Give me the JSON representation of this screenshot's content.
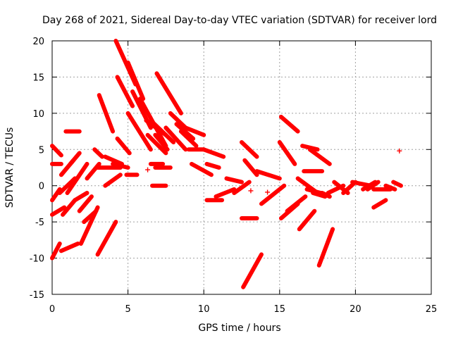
{
  "chart_data": {
    "type": "scatter",
    "title": "Day 268 of 2021, Sidereal Day-to-day VTEC variation (SDTVAR) for receiver lord",
    "xlabel": "GPS time / hours",
    "ylabel": "SDTVAR / TECUs",
    "xlim": [
      0,
      25
    ],
    "ylim": [
      -15,
      20
    ],
    "xticks": [
      0,
      5,
      10,
      15,
      20,
      25
    ],
    "yticks": [
      -15,
      -10,
      -5,
      0,
      5,
      10,
      15,
      20
    ],
    "xtick_labels": [
      "0",
      "5",
      "10",
      "15",
      "20",
      "25"
    ],
    "ytick_labels": [
      "-15",
      "-10",
      "-5",
      "0",
      "5",
      "10",
      "15",
      "20"
    ],
    "grid": true,
    "marker": "+",
    "color": "#ff0000",
    "series": [
      {
        "name": "track",
        "x": [
          0.0,
          0.6
        ],
        "y": [
          5.5,
          4.2
        ]
      },
      {
        "name": "track",
        "x": [
          0.0,
          0.6
        ],
        "y": [
          3.0,
          3.0
        ]
      },
      {
        "name": "track",
        "x": [
          0.0,
          0.5
        ],
        "y": [
          -2.0,
          -0.5
        ]
      },
      {
        "name": "track",
        "x": [
          0.0,
          0.8
        ],
        "y": [
          -4.0,
          -3.0
        ]
      },
      {
        "name": "track",
        "x": [
          0.0,
          0.5
        ],
        "y": [
          -10.0,
          -8.0
        ]
      },
      {
        "name": "track",
        "x": [
          0.6,
          1.7
        ],
        "y": [
          -9.0,
          -8.0
        ]
      },
      {
        "name": "track",
        "x": [
          0.9,
          1.8
        ],
        "y": [
          7.5,
          7.5
        ]
      },
      {
        "name": "track",
        "x": [
          0.5,
          1.5
        ],
        "y": [
          -1.0,
          1.0
        ]
      },
      {
        "name": "track",
        "x": [
          0.6,
          1.4
        ],
        "y": [
          1.5,
          3.5
        ]
      },
      {
        "name": "track",
        "x": [
          0.7,
          1.5
        ],
        "y": [
          -4.0,
          -2.0
        ]
      },
      {
        "name": "track",
        "x": [
          1.2,
          1.8
        ],
        "y": [
          3.0,
          4.5
        ]
      },
      {
        "name": "track",
        "x": [
          1.0,
          2.3
        ],
        "y": [
          -1.0,
          3.0
        ]
      },
      {
        "name": "track",
        "x": [
          1.5,
          2.3
        ],
        "y": [
          -2.0,
          -1.0
        ]
      },
      {
        "name": "track",
        "x": [
          1.8,
          2.6
        ],
        "y": [
          -3.5,
          -1.5
        ]
      },
      {
        "name": "track",
        "x": [
          1.9,
          3.0
        ],
        "y": [
          -8.0,
          -3.0
        ]
      },
      {
        "name": "track",
        "x": [
          2.1,
          2.9
        ],
        "y": [
          -5.0,
          -3.5
        ]
      },
      {
        "name": "track",
        "x": [
          2.3,
          3.1
        ],
        "y": [
          1.0,
          3.0
        ]
      },
      {
        "name": "track",
        "x": [
          2.8,
          3.3
        ],
        "y": [
          5.0,
          4.0
        ]
      },
      {
        "name": "track",
        "x": [
          3.0,
          4.2
        ],
        "y": [
          -9.5,
          -5.0
        ]
      },
      {
        "name": "track",
        "x": [
          3.0,
          4.5
        ],
        "y": [
          2.5,
          2.5
        ]
      },
      {
        "name": "track",
        "x": [
          3.1,
          4.0
        ],
        "y": [
          12.5,
          7.5
        ]
      },
      {
        "name": "track",
        "x": [
          3.5,
          4.6
        ],
        "y": [
          4.0,
          3.0
        ]
      },
      {
        "name": "track",
        "x": [
          3.5,
          4.5
        ],
        "y": [
          0.0,
          1.5
        ]
      },
      {
        "name": "track",
        "x": [
          4.0,
          5.0
        ],
        "y": [
          3.0,
          2.5
        ]
      },
      {
        "name": "track",
        "x": [
          4.2,
          5.5
        ],
        "y": [
          20.0,
          14.0
        ]
      },
      {
        "name": "track",
        "x": [
          4.3,
          5.3
        ],
        "y": [
          15.0,
          11.0
        ]
      },
      {
        "name": "track",
        "x": [
          4.3,
          5.1
        ],
        "y": [
          6.5,
          4.5
        ]
      },
      {
        "name": "track",
        "x": [
          4.9,
          5.6
        ],
        "y": [
          1.5,
          1.5
        ]
      },
      {
        "name": "track",
        "x": [
          5.0,
          6.5
        ],
        "y": [
          10.0,
          5.0
        ]
      },
      {
        "name": "track",
        "x": [
          5.0,
          6.0
        ],
        "y": [
          17.0,
          12.0
        ]
      },
      {
        "name": "track",
        "x": [
          5.3,
          6.5
        ],
        "y": [
          13.0,
          8.0
        ]
      },
      {
        "name": "track",
        "x": [
          5.8,
          7.5
        ],
        "y": [
          12.0,
          5.5
        ]
      },
      {
        "name": "track",
        "x": [
          6.2,
          7.5
        ],
        "y": [
          9.0,
          7.0
        ]
      },
      {
        "name": "track",
        "x": [
          6.3,
          7.5
        ],
        "y": [
          7.0,
          4.5
        ]
      },
      {
        "name": "track",
        "x": [
          6.5,
          8.0
        ],
        "y": [
          9.0,
          6.0
        ]
      },
      {
        "name": "track",
        "x": [
          6.8,
          7.6
        ],
        "y": [
          7.0,
          5.0
        ]
      },
      {
        "name": "track",
        "x": [
          6.5,
          7.3
        ],
        "y": [
          3.0,
          3.0
        ]
      },
      {
        "name": "track",
        "x": [
          6.8,
          7.8
        ],
        "y": [
          2.5,
          2.5
        ]
      },
      {
        "name": "track",
        "x": [
          6.6,
          7.5
        ],
        "y": [
          0.0,
          0.0
        ]
      },
      {
        "name": "track",
        "x": [
          6.9,
          8.5
        ],
        "y": [
          15.5,
          10.0
        ]
      },
      {
        "name": "track",
        "x": [
          7.5,
          8.8
        ],
        "y": [
          8.0,
          5.0
        ]
      },
      {
        "name": "track",
        "x": [
          7.8,
          8.8
        ],
        "y": [
          10.0,
          8.0
        ]
      },
      {
        "name": "track",
        "x": [
          8.2,
          9.3
        ],
        "y": [
          8.5,
          6.5
        ]
      },
      {
        "name": "track",
        "x": [
          8.5,
          9.5
        ],
        "y": [
          7.5,
          5.5
        ]
      },
      {
        "name": "track",
        "x": [
          8.8,
          10.0
        ],
        "y": [
          8.0,
          7.0
        ]
      },
      {
        "name": "track",
        "x": [
          9.0,
          10.0
        ],
        "y": [
          5.0,
          5.0
        ]
      },
      {
        "name": "track",
        "x": [
          9.2,
          10.5
        ],
        "y": [
          3.0,
          1.5
        ]
      },
      {
        "name": "track",
        "x": [
          10.0,
          11.3
        ],
        "y": [
          5.0,
          4.0
        ]
      },
      {
        "name": "track",
        "x": [
          10.2,
          11.2
        ],
        "y": [
          -2.0,
          -2.0
        ]
      },
      {
        "name": "track",
        "x": [
          10.2,
          11.0
        ],
        "y": [
          3.0,
          2.5
        ]
      },
      {
        "name": "track",
        "x": [
          10.8,
          12.0
        ],
        "y": [
          -1.5,
          -0.5
        ]
      },
      {
        "name": "track",
        "x": [
          11.5,
          12.5
        ],
        "y": [
          1.0,
          0.5
        ]
      },
      {
        "name": "track",
        "x": [
          12.0,
          13.0
        ],
        "y": [
          -1.0,
          0.5
        ]
      },
      {
        "name": "track",
        "x": [
          12.5,
          13.5
        ],
        "y": [
          6.0,
          4.0
        ]
      },
      {
        "name": "track",
        "x": [
          12.5,
          13.5
        ],
        "y": [
          -4.5,
          -4.5
        ]
      },
      {
        "name": "track",
        "x": [
          12.6,
          13.8
        ],
        "y": [
          -14.0,
          -9.5
        ]
      },
      {
        "name": "track",
        "x": [
          12.7,
          13.5
        ],
        "y": [
          3.5,
          1.5
        ]
      },
      {
        "name": "track",
        "x": [
          13.5,
          15.0
        ],
        "y": [
          2.0,
          1.0
        ]
      },
      {
        "name": "track",
        "x": [
          13.8,
          15.3
        ],
        "y": [
          -2.5,
          0.0
        ]
      },
      {
        "name": "track",
        "x": [
          15.0,
          16.0
        ],
        "y": [
          6.0,
          3.0
        ]
      },
      {
        "name": "track",
        "x": [
          15.1,
          16.2
        ],
        "y": [
          9.5,
          7.5
        ]
      },
      {
        "name": "track",
        "x": [
          15.1,
          16.2
        ],
        "y": [
          -4.5,
          -2.5
        ]
      },
      {
        "name": "track",
        "x": [
          15.5,
          16.7
        ],
        "y": [
          -3.5,
          -1.5
        ]
      },
      {
        "name": "track",
        "x": [
          16.2,
          17.5
        ],
        "y": [
          1.0,
          -1.0
        ]
      },
      {
        "name": "track",
        "x": [
          16.3,
          17.3
        ],
        "y": [
          -6.0,
          -3.5
        ]
      },
      {
        "name": "track",
        "x": [
          16.5,
          17.5
        ],
        "y": [
          5.5,
          5.0
        ]
      },
      {
        "name": "track",
        "x": [
          16.6,
          17.8
        ],
        "y": [
          2.0,
          2.0
        ]
      },
      {
        "name": "track",
        "x": [
          16.8,
          17.7
        ],
        "y": [
          -0.5,
          -1.0
        ]
      },
      {
        "name": "track",
        "x": [
          17.0,
          18.3
        ],
        "y": [
          5.0,
          3.0
        ]
      },
      {
        "name": "track",
        "x": [
          17.2,
          18.0
        ],
        "y": [
          -1.0,
          -1.5
        ]
      },
      {
        "name": "track",
        "x": [
          17.6,
          18.5
        ],
        "y": [
          -11.0,
          -6.0
        ]
      },
      {
        "name": "track",
        "x": [
          17.8,
          18.3
        ],
        "y": [
          -1.0,
          -1.5
        ]
      },
      {
        "name": "track",
        "x": [
          18.2,
          19.2
        ],
        "y": [
          -1.0,
          0.0
        ]
      },
      {
        "name": "track",
        "x": [
          18.6,
          19.5
        ],
        "y": [
          0.5,
          -1.0
        ]
      },
      {
        "name": "track",
        "x": [
          19.2,
          20.0
        ],
        "y": [
          -1.0,
          0.5
        ]
      },
      {
        "name": "track",
        "x": [
          19.8,
          21.0
        ],
        "y": [
          0.5,
          0.0
        ]
      },
      {
        "name": "track",
        "x": [
          20.5,
          21.3
        ],
        "y": [
          -0.5,
          0.5
        ]
      },
      {
        "name": "track",
        "x": [
          20.8,
          21.5
        ],
        "y": [
          -0.5,
          0.5
        ]
      },
      {
        "name": "track",
        "x": [
          21.2,
          22.3
        ],
        "y": [
          -0.5,
          -0.5
        ]
      },
      {
        "name": "track",
        "x": [
          21.2,
          22.0
        ],
        "y": [
          -3.0,
          -2.0
        ]
      },
      {
        "name": "track",
        "x": [
          22.0,
          22.6
        ],
        "y": [
          0.0,
          -0.5
        ]
      },
      {
        "name": "track",
        "x": [
          22.5,
          23.0
        ],
        "y": [
          0.5,
          0.0
        ]
      },
      {
        "name": "track",
        "x": [
          22.9,
          22.9
        ],
        "y": [
          4.8,
          4.8
        ]
      },
      {
        "name": "point",
        "x": [
          6.3
        ],
        "y": [
          2.2
        ]
      },
      {
        "name": "point",
        "x": [
          13.1
        ],
        "y": [
          -0.7
        ]
      },
      {
        "name": "point",
        "x": [
          14.2
        ],
        "y": [
          -0.9
        ]
      }
    ]
  }
}
